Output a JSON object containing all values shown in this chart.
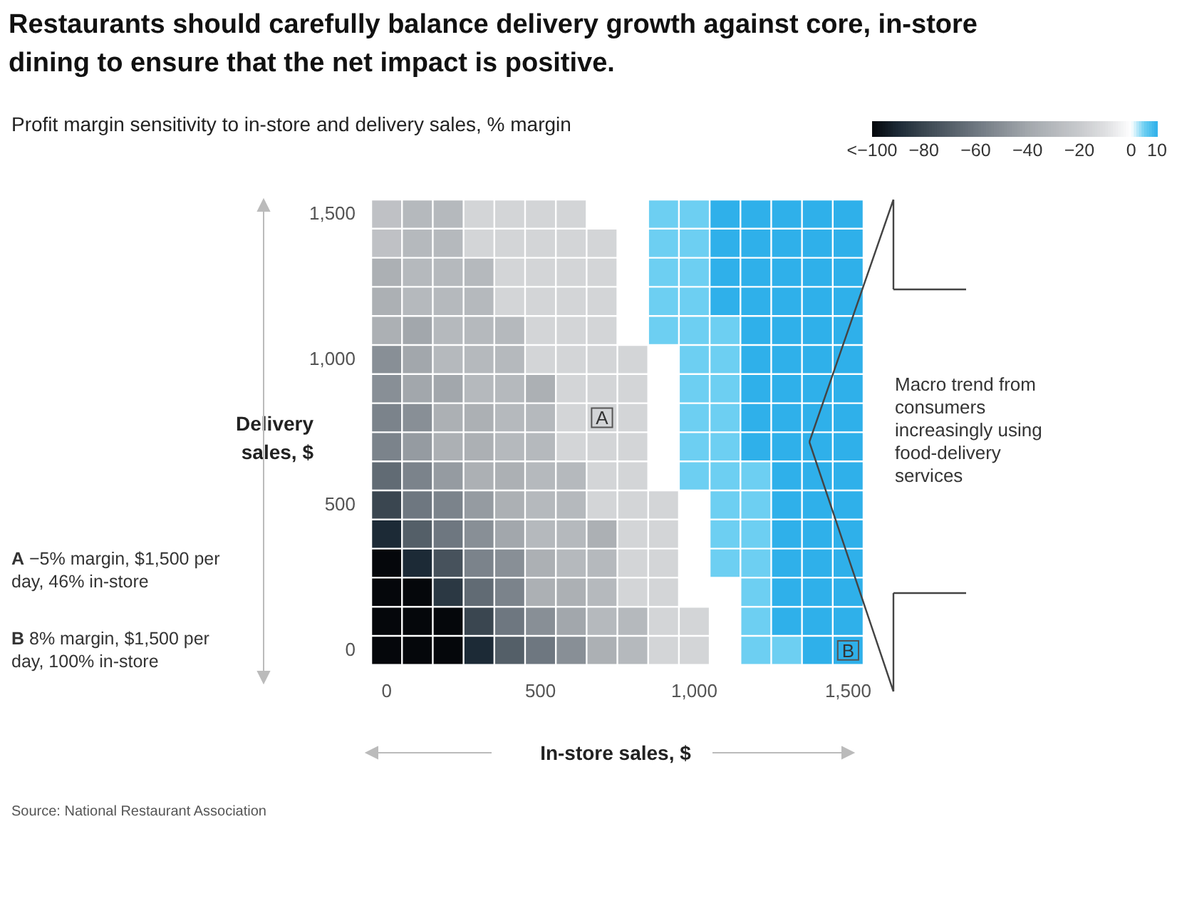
{
  "chart_data": {
    "type": "heatmap",
    "title": "Restaurants should carefully balance delivery growth against core, in-store dining to ensure that the net impact is positive.",
    "subtitle": "Profit margin sensitivity to in-store and delivery sales, % margin",
    "xlabel": "In-store sales, $",
    "ylabel": "Delivery sales, $",
    "categories": [
      "0",
      null,
      null,
      null,
      null,
      "500",
      null,
      null,
      null,
      null,
      "1,000",
      null,
      null,
      null,
      null,
      "1,500"
    ],
    "y_categories": [
      "1,500",
      null,
      null,
      null,
      null,
      "1,000",
      null,
      null,
      null,
      null,
      "500",
      null,
      null,
      null,
      null,
      "0"
    ],
    "cells": [
      [
        -25,
        -30,
        -30,
        -15,
        -15,
        -15,
        -15,
        0,
        0,
        5,
        5,
        10,
        10,
        10,
        10,
        10
      ],
      [
        -25,
        -30,
        -30,
        -15,
        -15,
        -15,
        -15,
        -15,
        0,
        5,
        5,
        10,
        10,
        10,
        10,
        10
      ],
      [
        -35,
        -30,
        -30,
        -30,
        -15,
        -15,
        -15,
        -15,
        0,
        5,
        5,
        10,
        10,
        10,
        10,
        10
      ],
      [
        -35,
        -30,
        -30,
        -30,
        -15,
        -15,
        -15,
        -15,
        0,
        5,
        5,
        10,
        10,
        10,
        10,
        10
      ],
      [
        -35,
        -40,
        -30,
        -30,
        -30,
        -15,
        -15,
        -15,
        0,
        5,
        5,
        5,
        10,
        10,
        10,
        10
      ],
      [
        -50,
        -40,
        -30,
        -30,
        -30,
        -15,
        -15,
        -15,
        -15,
        0,
        5,
        5,
        10,
        10,
        10,
        10
      ],
      [
        -50,
        -40,
        -40,
        -30,
        -30,
        -35,
        -15,
        -15,
        -15,
        0,
        5,
        5,
        10,
        10,
        10,
        10
      ],
      [
        -55,
        -50,
        -35,
        -35,
        -30,
        -30,
        -15,
        -15,
        -15,
        0,
        5,
        5,
        10,
        10,
        10,
        10
      ],
      [
        -55,
        -45,
        -35,
        -35,
        -30,
        -30,
        -15,
        -15,
        -15,
        0,
        5,
        5,
        10,
        10,
        10,
        10
      ],
      [
        -65,
        -55,
        -45,
        -35,
        -35,
        -30,
        -30,
        -15,
        -15,
        0,
        5,
        5,
        5,
        10,
        10,
        10
      ],
      [
        -80,
        -60,
        -55,
        -45,
        -35,
        -30,
        -30,
        -15,
        -15,
        -15,
        0,
        5,
        5,
        10,
        10,
        10
      ],
      [
        -90,
        -70,
        -60,
        -50,
        -40,
        -30,
        -30,
        -35,
        -15,
        -15,
        0,
        5,
        5,
        10,
        10,
        10
      ],
      [
        -100,
        -90,
        -75,
        -55,
        -50,
        -35,
        -30,
        -30,
        -15,
        -15,
        0,
        5,
        5,
        10,
        10,
        10
      ],
      [
        -100,
        -100,
        -85,
        -65,
        -55,
        -35,
        -35,
        -30,
        -15,
        -15,
        0,
        0,
        5,
        10,
        10,
        10
      ],
      [
        -100,
        -100,
        -100,
        -80,
        -60,
        -50,
        -40,
        -30,
        -30,
        -15,
        -15,
        0,
        5,
        10,
        10,
        10
      ],
      [
        -100,
        -100,
        -100,
        -90,
        -70,
        -60,
        -50,
        -35,
        -30,
        -15,
        -15,
        0,
        5,
        5,
        10,
        10
      ]
    ],
    "cell_labels": [
      [
        null,
        null,
        null,
        null,
        null,
        null,
        null,
        null,
        null,
        null,
        null,
        null,
        null,
        null,
        null,
        null
      ],
      [
        null,
        null,
        null,
        null,
        null,
        null,
        null,
        null,
        null,
        null,
        null,
        null,
        null,
        null,
        null,
        null
      ],
      [
        null,
        null,
        null,
        null,
        null,
        null,
        null,
        null,
        null,
        null,
        null,
        null,
        null,
        null,
        null,
        null
      ],
      [
        null,
        null,
        null,
        null,
        null,
        null,
        null,
        null,
        null,
        null,
        null,
        null,
        null,
        null,
        null,
        null
      ],
      [
        null,
        null,
        null,
        null,
        null,
        null,
        null,
        null,
        null,
        null,
        null,
        null,
        null,
        null,
        null,
        null
      ],
      [
        null,
        null,
        null,
        null,
        null,
        null,
        null,
        null,
        null,
        null,
        null,
        null,
        null,
        null,
        null,
        null
      ],
      [
        null,
        null,
        null,
        null,
        null,
        null,
        null,
        null,
        null,
        null,
        null,
        null,
        null,
        null,
        null,
        null
      ],
      [
        null,
        null,
        null,
        null,
        null,
        null,
        null,
        "A",
        null,
        null,
        null,
        null,
        null,
        null,
        null,
        null
      ],
      [
        null,
        null,
        null,
        null,
        null,
        null,
        null,
        null,
        null,
        null,
        null,
        null,
        null,
        null,
        null,
        null
      ],
      [
        null,
        null,
        null,
        null,
        null,
        null,
        null,
        null,
        null,
        null,
        null,
        null,
        null,
        null,
        null,
        null
      ],
      [
        null,
        null,
        null,
        null,
        null,
        null,
        null,
        null,
        null,
        null,
        null,
        null,
        null,
        null,
        null,
        null
      ],
      [
        null,
        null,
        null,
        null,
        null,
        null,
        null,
        null,
        null,
        null,
        null,
        null,
        null,
        null,
        null,
        null
      ],
      [
        null,
        null,
        null,
        null,
        null,
        null,
        null,
        null,
        null,
        null,
        null,
        null,
        null,
        null,
        null,
        null
      ],
      [
        null,
        null,
        null,
        null,
        null,
        null,
        null,
        null,
        null,
        null,
        null,
        null,
        null,
        null,
        null,
        null
      ],
      [
        null,
        null,
        null,
        null,
        null,
        null,
        null,
        null,
        null,
        null,
        null,
        null,
        null,
        null,
        null,
        null
      ],
      [
        null,
        null,
        null,
        null,
        null,
        null,
        null,
        null,
        null,
        null,
        null,
        null,
        null,
        null,
        null,
        "B"
      ]
    ],
    "clim": [
      -100,
      10
    ],
    "cticks": [
      {
        "value": -100,
        "label": "<−100"
      },
      {
        "value": -80,
        "label": "−80"
      },
      {
        "value": -60,
        "label": "−60"
      },
      {
        "value": -40,
        "label": "−40"
      },
      {
        "value": -20,
        "label": "−20"
      },
      0,
      10
    ],
    "annotations": [
      "A −5% margin, $1,500 per day, 46% in-store",
      "B 8% margin, $1,500 per day, 100% in-store",
      "Macro trend from consumers increasingly using food-delivery services",
      "Source: National Restaurant Association"
    ]
  }
}
